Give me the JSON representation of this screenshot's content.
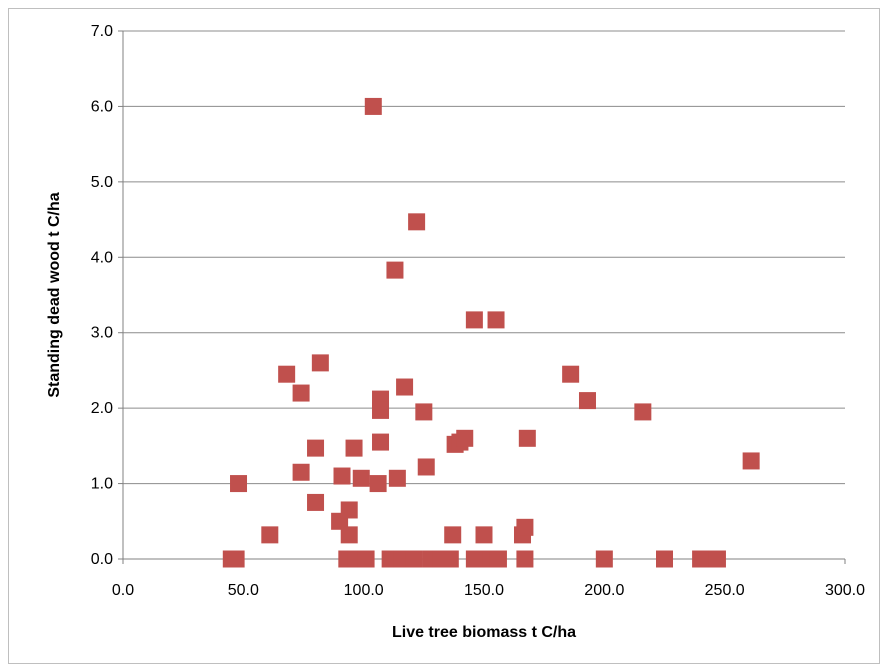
{
  "chart_data": {
    "type": "scatter",
    "title": "",
    "xlabel": "Live tree biomass t C/ha",
    "ylabel": "Standing dead wood t C/ha",
    "xlim": [
      0,
      300
    ],
    "ylim": [
      0,
      7
    ],
    "x_ticks": [
      "0.0",
      "50.0",
      "100.0",
      "150.0",
      "200.0",
      "250.0",
      "300.0"
    ],
    "y_ticks": [
      "0.0",
      "1.0",
      "2.0",
      "3.0",
      "4.0",
      "5.0",
      "6.0",
      "7.0"
    ],
    "grid": "horizontal",
    "legend": "none",
    "marker_color": "#c0504d",
    "series": [
      {
        "points": [
          [
            45,
            0
          ],
          [
            47,
            0
          ],
          [
            48,
            1.0
          ],
          [
            61,
            0.32
          ],
          [
            68,
            2.45
          ],
          [
            74,
            2.2
          ],
          [
            74,
            1.15
          ],
          [
            80,
            1.47
          ],
          [
            80,
            0.75
          ],
          [
            82,
            2.6
          ],
          [
            90,
            0.5
          ],
          [
            91,
            1.1
          ],
          [
            93,
            0
          ],
          [
            94,
            0.65
          ],
          [
            94,
            0.32
          ],
          [
            96,
            1.47
          ],
          [
            97,
            0
          ],
          [
            99,
            1.07
          ],
          [
            101,
            0
          ],
          [
            104,
            6.0
          ],
          [
            106,
            1.0
          ],
          [
            107,
            2.12
          ],
          [
            107,
            1.97
          ],
          [
            107,
            1.55
          ],
          [
            111,
            0
          ],
          [
            113,
            3.83
          ],
          [
            114,
            1.07
          ],
          [
            116,
            0
          ],
          [
            117,
            2.28
          ],
          [
            121,
            0
          ],
          [
            122,
            4.47
          ],
          [
            125,
            1.95
          ],
          [
            126,
            1.22
          ],
          [
            128,
            0
          ],
          [
            132,
            0
          ],
          [
            136,
            0
          ],
          [
            137,
            0.32
          ],
          [
            138,
            1.52
          ],
          [
            140,
            1.55
          ],
          [
            142,
            1.6
          ],
          [
            146,
            0
          ],
          [
            146,
            3.17
          ],
          [
            150,
            0
          ],
          [
            150,
            0.32
          ],
          [
            153,
            0
          ],
          [
            155,
            3.17
          ],
          [
            156,
            0
          ],
          [
            166,
            0.32
          ],
          [
            167,
            0.42
          ],
          [
            167,
            0
          ],
          [
            168,
            1.6
          ],
          [
            186,
            2.45
          ],
          [
            193,
            2.1
          ],
          [
            200,
            0
          ],
          [
            216,
            1.95
          ],
          [
            225,
            0
          ],
          [
            240,
            0
          ],
          [
            243,
            0
          ],
          [
            247,
            0
          ],
          [
            261,
            1.3
          ]
        ]
      }
    ]
  }
}
